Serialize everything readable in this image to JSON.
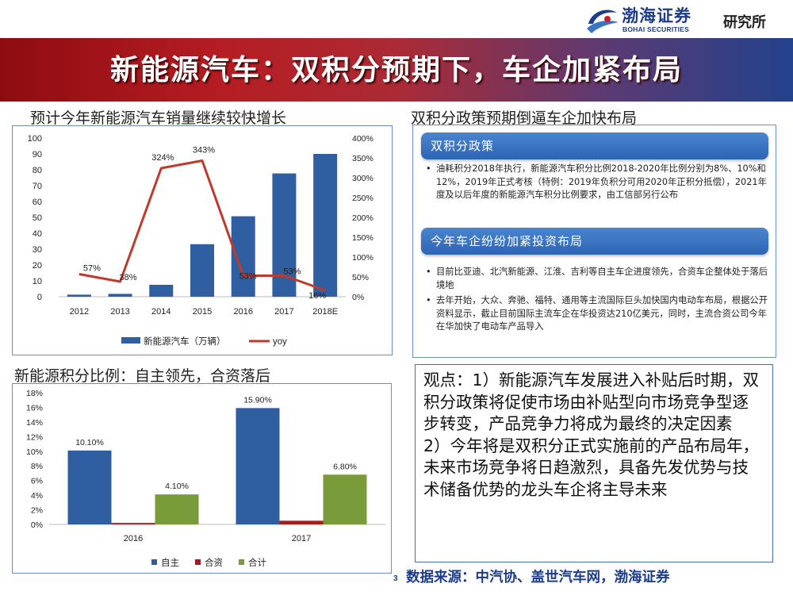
{
  "header": {
    "logo_cn": "渤海证券",
    "logo_en": "BOHAI SECURITIES",
    "dept": "研究所",
    "title": "新能源汽车：双积分预期下，车企加紧布局"
  },
  "colors": {
    "banner_left": "#8e0c10",
    "banner_right": "#23418c",
    "bar_blue": "#2f5fa0",
    "line_red": "#c0392b",
    "bar_red": "#a61c1c",
    "bar_green": "#7a9b3a",
    "pill_blue": "#3a74c2"
  },
  "section1": {
    "title": "预计今年新能源汽车销量继续较快增长"
  },
  "section2": {
    "title": "双积分政策预期倒逼车企加快布局"
  },
  "section3": {
    "title": "新能源积分比例：自主领先，合资落后"
  },
  "policy": {
    "pill1": "双积分政策",
    "bullets1": [
      "油耗积分2018年执行，新能源汽车积分比例2018-2020年比例分别为8%、10%和12%，2019年正式考核（特例：2019年负积分可用2020年正积分抵偿），2021年度及以后年度的新能源汽车积分比例要求，由工信部另行公布"
    ],
    "pill2": "今年车企纷纷加紧投资布局",
    "bullets2": [
      "目前比亚迪、北汽新能源、江淮、吉利等自主车企进度领先，合资车企整体处于落后境地",
      "去年开始，大众、奔驰、福特、通用等主流国际巨头加快国内电动车布局，根据公开资料显示，截止目前国际主流车企在华投资达210亿美元，同时，主流合资公司今年在华加快了电动车产品导入"
    ]
  },
  "viewpoint": {
    "text": "观点：1）新能源汽车发展进入补贴后时期，双积分政策将促使市场由补贴型向市场竞争型逐步转变，产品竞争力将成为最终的决定因素\n2）今年将是双积分正式实施前的产品布局年，未来市场竞争将日趋激烈，具备先发优势与技术储备优势的龙头车企将主导未来"
  },
  "footer": {
    "page": "3",
    "source": "数据来源：中汽协、盖世汽车网，渤海证券"
  },
  "chart_data": [
    {
      "type": "bar+line",
      "categories": [
        "2012",
        "2013",
        "2014",
        "2015",
        "2016",
        "2017",
        "2018E"
      ],
      "series": [
        {
          "name": "新能源汽车（万辆）",
          "type": "bar",
          "axis": "left",
          "values": [
            1.3,
            1.8,
            7.5,
            33.1,
            50.7,
            77.7,
            90
          ]
        },
        {
          "name": "yoy",
          "type": "line",
          "axis": "right",
          "values": [
            57,
            38,
            324,
            343,
            53,
            53,
            16
          ]
        }
      ],
      "data_labels": [
        "57%",
        "38%",
        "324%",
        "343%",
        "53%",
        "53%",
        "16%"
      ],
      "y_left": {
        "min": 0,
        "max": 100,
        "ticks": [
          "0",
          "10",
          "20",
          "30",
          "40",
          "50",
          "60",
          "70",
          "80",
          "90",
          "100"
        ]
      },
      "y_right": {
        "min": 0,
        "max": 400,
        "ticks": [
          "0%",
          "50%",
          "100%",
          "150%",
          "200%",
          "250%",
          "300%",
          "350%",
          "400%"
        ]
      },
      "legend": "bottom",
      "grid": false
    },
    {
      "type": "bar",
      "categories": [
        "2016",
        "2017"
      ],
      "series": [
        {
          "name": "自主",
          "values": [
            10.1,
            15.9
          ]
        },
        {
          "name": "合资",
          "values": [
            0.2,
            0.5
          ]
        },
        {
          "name": "合计",
          "values": [
            4.1,
            6.8
          ]
        }
      ],
      "data_labels": [
        [
          "10.10%",
          "15.90%"
        ],
        [
          "",
          ""
        ],
        [
          "4.10%",
          "6.80%"
        ]
      ],
      "y": {
        "min": 0,
        "max": 18,
        "ticks": [
          "0%",
          "2%",
          "4%",
          "6%",
          "8%",
          "10%",
          "12%",
          "14%",
          "16%",
          "18%"
        ]
      },
      "legend": "bottom",
      "grid": false
    }
  ]
}
